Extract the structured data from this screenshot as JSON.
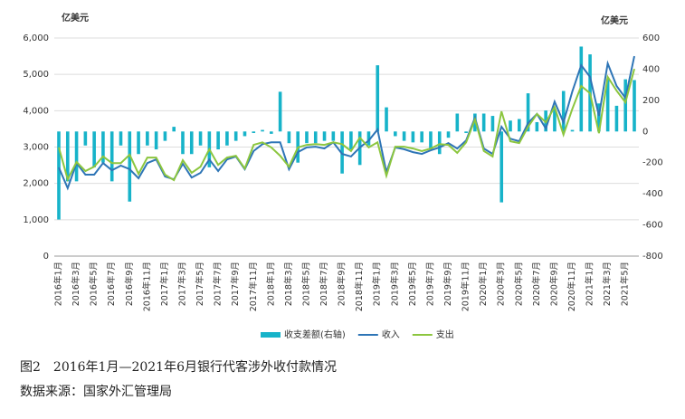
{
  "chart_data": {
    "type": "combo",
    "y_label": "亿美元",
    "y2_label": "亿美元",
    "caption": "图2　2016年1月—2021年6月银行代客涉外收付款情况",
    "source": "数据来源：国家外汇管理局",
    "categories": [
      "2016年1月",
      null,
      "2016年3月",
      null,
      "2016年5月",
      null,
      "2016年7月",
      null,
      "2016年9月",
      null,
      "2016年11月",
      null,
      "2017年1月",
      null,
      "2017年3月",
      null,
      "2017年5月",
      null,
      "2017年7月",
      null,
      "2017年9月",
      null,
      "2017年11月",
      null,
      "2018年1月",
      null,
      "2018年3月",
      null,
      "2018年5月",
      null,
      "2018年7月",
      null,
      "2018年9月",
      null,
      "2018年11月",
      null,
      "2019年1月",
      null,
      "2019年3月",
      null,
      "2019年5月",
      null,
      "2019年7月",
      null,
      "2019年9月",
      null,
      "2019年11月",
      null,
      "2020年1月",
      null,
      "2020年3月",
      null,
      "2020年5月",
      null,
      "2020年7月",
      null,
      "2020年9月",
      null,
      "2020年11月",
      null,
      "2021年1月",
      null,
      "2021年3月",
      null,
      "2021年5月",
      null
    ],
    "series": [
      {
        "name": "收支差额(右轴)",
        "type": "bar",
        "axis": "y2",
        "color": "#17b3c9",
        "values": [
          -565,
          -320,
          -320,
          -90,
          -230,
          -200,
          -320,
          -90,
          -450,
          -145,
          -90,
          -115,
          -60,
          30,
          -145,
          -145,
          -90,
          -230,
          -115,
          -90,
          -60,
          -30,
          -10,
          10,
          -15,
          255,
          -75,
          -200,
          -75,
          -75,
          -60,
          -60,
          -270,
          -115,
          -215,
          -90,
          425,
          155,
          -30,
          -60,
          -70,
          -70,
          -115,
          -145,
          -40,
          115,
          -10,
          115,
          115,
          100,
          -455,
          70,
          80,
          245,
          60,
          135,
          145,
          260,
          10,
          545,
          495,
          180,
          335,
          165,
          335,
          330
        ]
      },
      {
        "name": "收入",
        "type": "line",
        "color": "#2e75b6",
        "values": [
          2440,
          1870,
          2560,
          2240,
          2240,
          2560,
          2360,
          2490,
          2390,
          2140,
          2560,
          2660,
          2190,
          2110,
          2540,
          2160,
          2290,
          2660,
          2340,
          2660,
          2740,
          2390,
          2890,
          3080,
          3130,
          3130,
          2390,
          2860,
          2990,
          3010,
          2960,
          3130,
          2810,
          2740,
          2990,
          3180,
          3480,
          2310,
          2990,
          2940,
          2860,
          2810,
          2910,
          2990,
          3110,
          2960,
          3180,
          3810,
          2960,
          2810,
          3560,
          3230,
          3160,
          3660,
          3910,
          3510,
          4250,
          3680,
          4530,
          5250,
          4930,
          3860,
          5300,
          4680,
          4350,
          5500
        ]
      },
      {
        "name": "支出",
        "type": "line",
        "color": "#8cc63f",
        "values": [
          2990,
          2110,
          2590,
          2340,
          2460,
          2740,
          2560,
          2560,
          2790,
          2260,
          2710,
          2710,
          2240,
          2090,
          2640,
          2290,
          2460,
          2940,
          2510,
          2710,
          2760,
          2410,
          3060,
          3130,
          2990,
          2760,
          2460,
          2990,
          3060,
          3080,
          3060,
          3130,
          3080,
          2890,
          3260,
          2990,
          3130,
          2210,
          3010,
          3010,
          2960,
          2890,
          2960,
          3080,
          3060,
          2840,
          3130,
          3760,
          2890,
          2740,
          3980,
          3160,
          3110,
          3560,
          3910,
          3680,
          4100,
          3340,
          4050,
          4680,
          4480,
          3380,
          4930,
          4550,
          4230,
          5150
        ]
      }
    ],
    "ylim": [
      0,
      6000
    ],
    "yticks": [
      0,
      {
        "value": 1000,
        "label": "1,000"
      },
      {
        "value": 2000,
        "label": "2,000"
      },
      {
        "value": 3000,
        "label": "3,000"
      },
      {
        "value": 4000,
        "label": "4,000"
      },
      {
        "value": 5000,
        "label": "5,000"
      },
      {
        "value": 6000,
        "label": "6,000"
      }
    ],
    "y2lim": [
      -800,
      600
    ],
    "y2ticks": [
      -800,
      -600,
      -400,
      -200,
      0,
      200,
      400,
      600
    ],
    "grid": true,
    "legend": "bottom"
  }
}
